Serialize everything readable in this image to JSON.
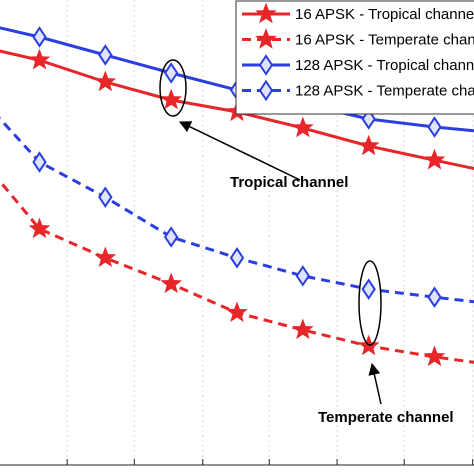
{
  "chart_data": {
    "type": "line",
    "x": [
      0,
      1,
      2,
      3,
      4,
      5,
      6,
      7,
      8
    ],
    "xlim": [
      0.4,
      7.6
    ],
    "ylim": [
      0,
      10
    ],
    "xticks": [
      0.39,
      1.42,
      2.44,
      3.48,
      4.49,
      5.52,
      6.54,
      7.58
    ],
    "grid": true,
    "legend": "upper right",
    "series": [
      {
        "name": "16 APSK - Tropical channel",
        "color": "#e8262a",
        "line": "solid",
        "marker": "star",
        "values": [
          9.05,
          8.73,
          8.27,
          7.89,
          7.64,
          7.3,
          6.92,
          6.62,
          6.33
        ]
      },
      {
        "name": "16 APSK - Temperate channel",
        "color": "#e8262a",
        "line": "dashed",
        "marker": "star",
        "values": [
          6.84,
          5.17,
          4.56,
          4.01,
          3.4,
          3.04,
          2.7,
          2.47,
          2.28
        ]
      },
      {
        "name": "128 APSK - Tropical channel",
        "color": "#2b3fe0",
        "line": "solid",
        "marker": "diamond",
        "values": [
          9.54,
          9.22,
          8.84,
          8.46,
          8.1,
          7.81,
          7.49,
          7.32,
          7.19
        ]
      },
      {
        "name": "128 APSK - Temperate channel",
        "color": "#2b3fe0",
        "line": "dashed",
        "marker": "diamond",
        "values": [
          8.1,
          6.58,
          5.84,
          5.0,
          4.56,
          4.18,
          3.9,
          3.73,
          3.57
        ]
      }
    ],
    "annotations": [
      "Tropical channel",
      "Temperate channel"
    ]
  }
}
